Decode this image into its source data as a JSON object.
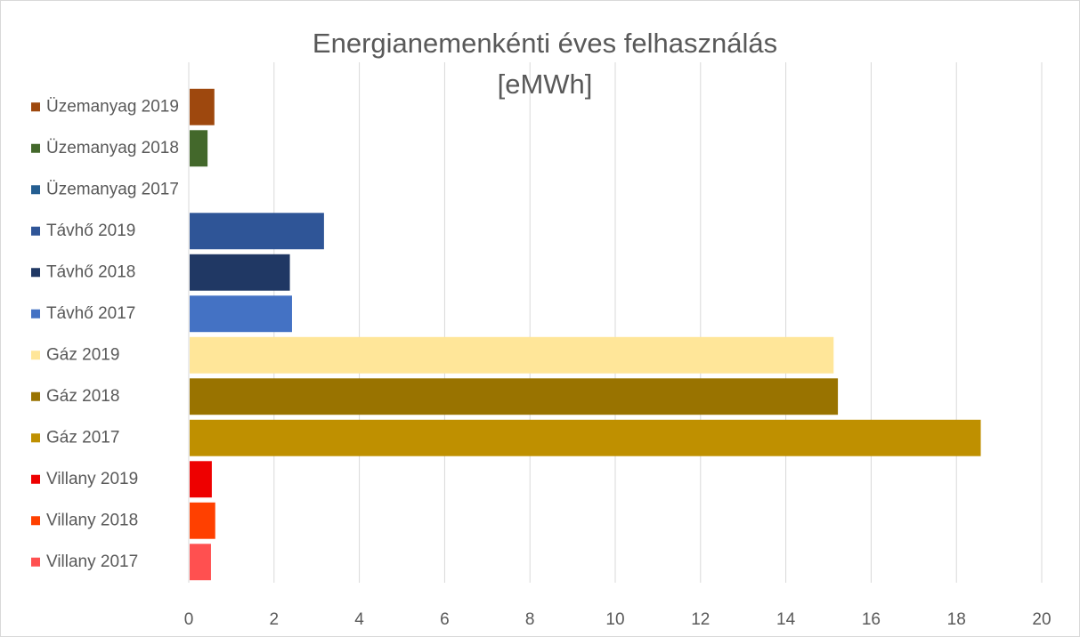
{
  "chart_data": {
    "type": "bar",
    "orientation": "horizontal",
    "title": "Energianemenkénti éves felhasználás [eMWh]",
    "categories": [
      "Villany 2017",
      "Villany 2018",
      "Villany 2019",
      "Gáz 2017",
      "Gáz 2018",
      "Gáz 2019",
      "Távhő 2017",
      "Távhő 2018",
      "Távhő 2019",
      "Üzemanyag 2017",
      "Üzemanyag 2018",
      "Üzemanyag 2019"
    ],
    "values": [
      0.5,
      0.6,
      0.52,
      18.55,
      15.2,
      15.1,
      2.4,
      2.35,
      3.15,
      0,
      0.42,
      0.58
    ],
    "colors": [
      "#ff5050",
      "#ff4000",
      "#ee0000",
      "#bf9000",
      "#997300",
      "#ffe699",
      "#4472c4",
      "#203864",
      "#2f5597",
      "#255e91",
      "#43682b",
      "#9e480e"
    ],
    "xlim": [
      0,
      20
    ],
    "xticks": [
      0,
      2,
      4,
      6,
      8,
      10,
      12,
      14,
      16,
      18,
      20
    ],
    "grid": true
  }
}
